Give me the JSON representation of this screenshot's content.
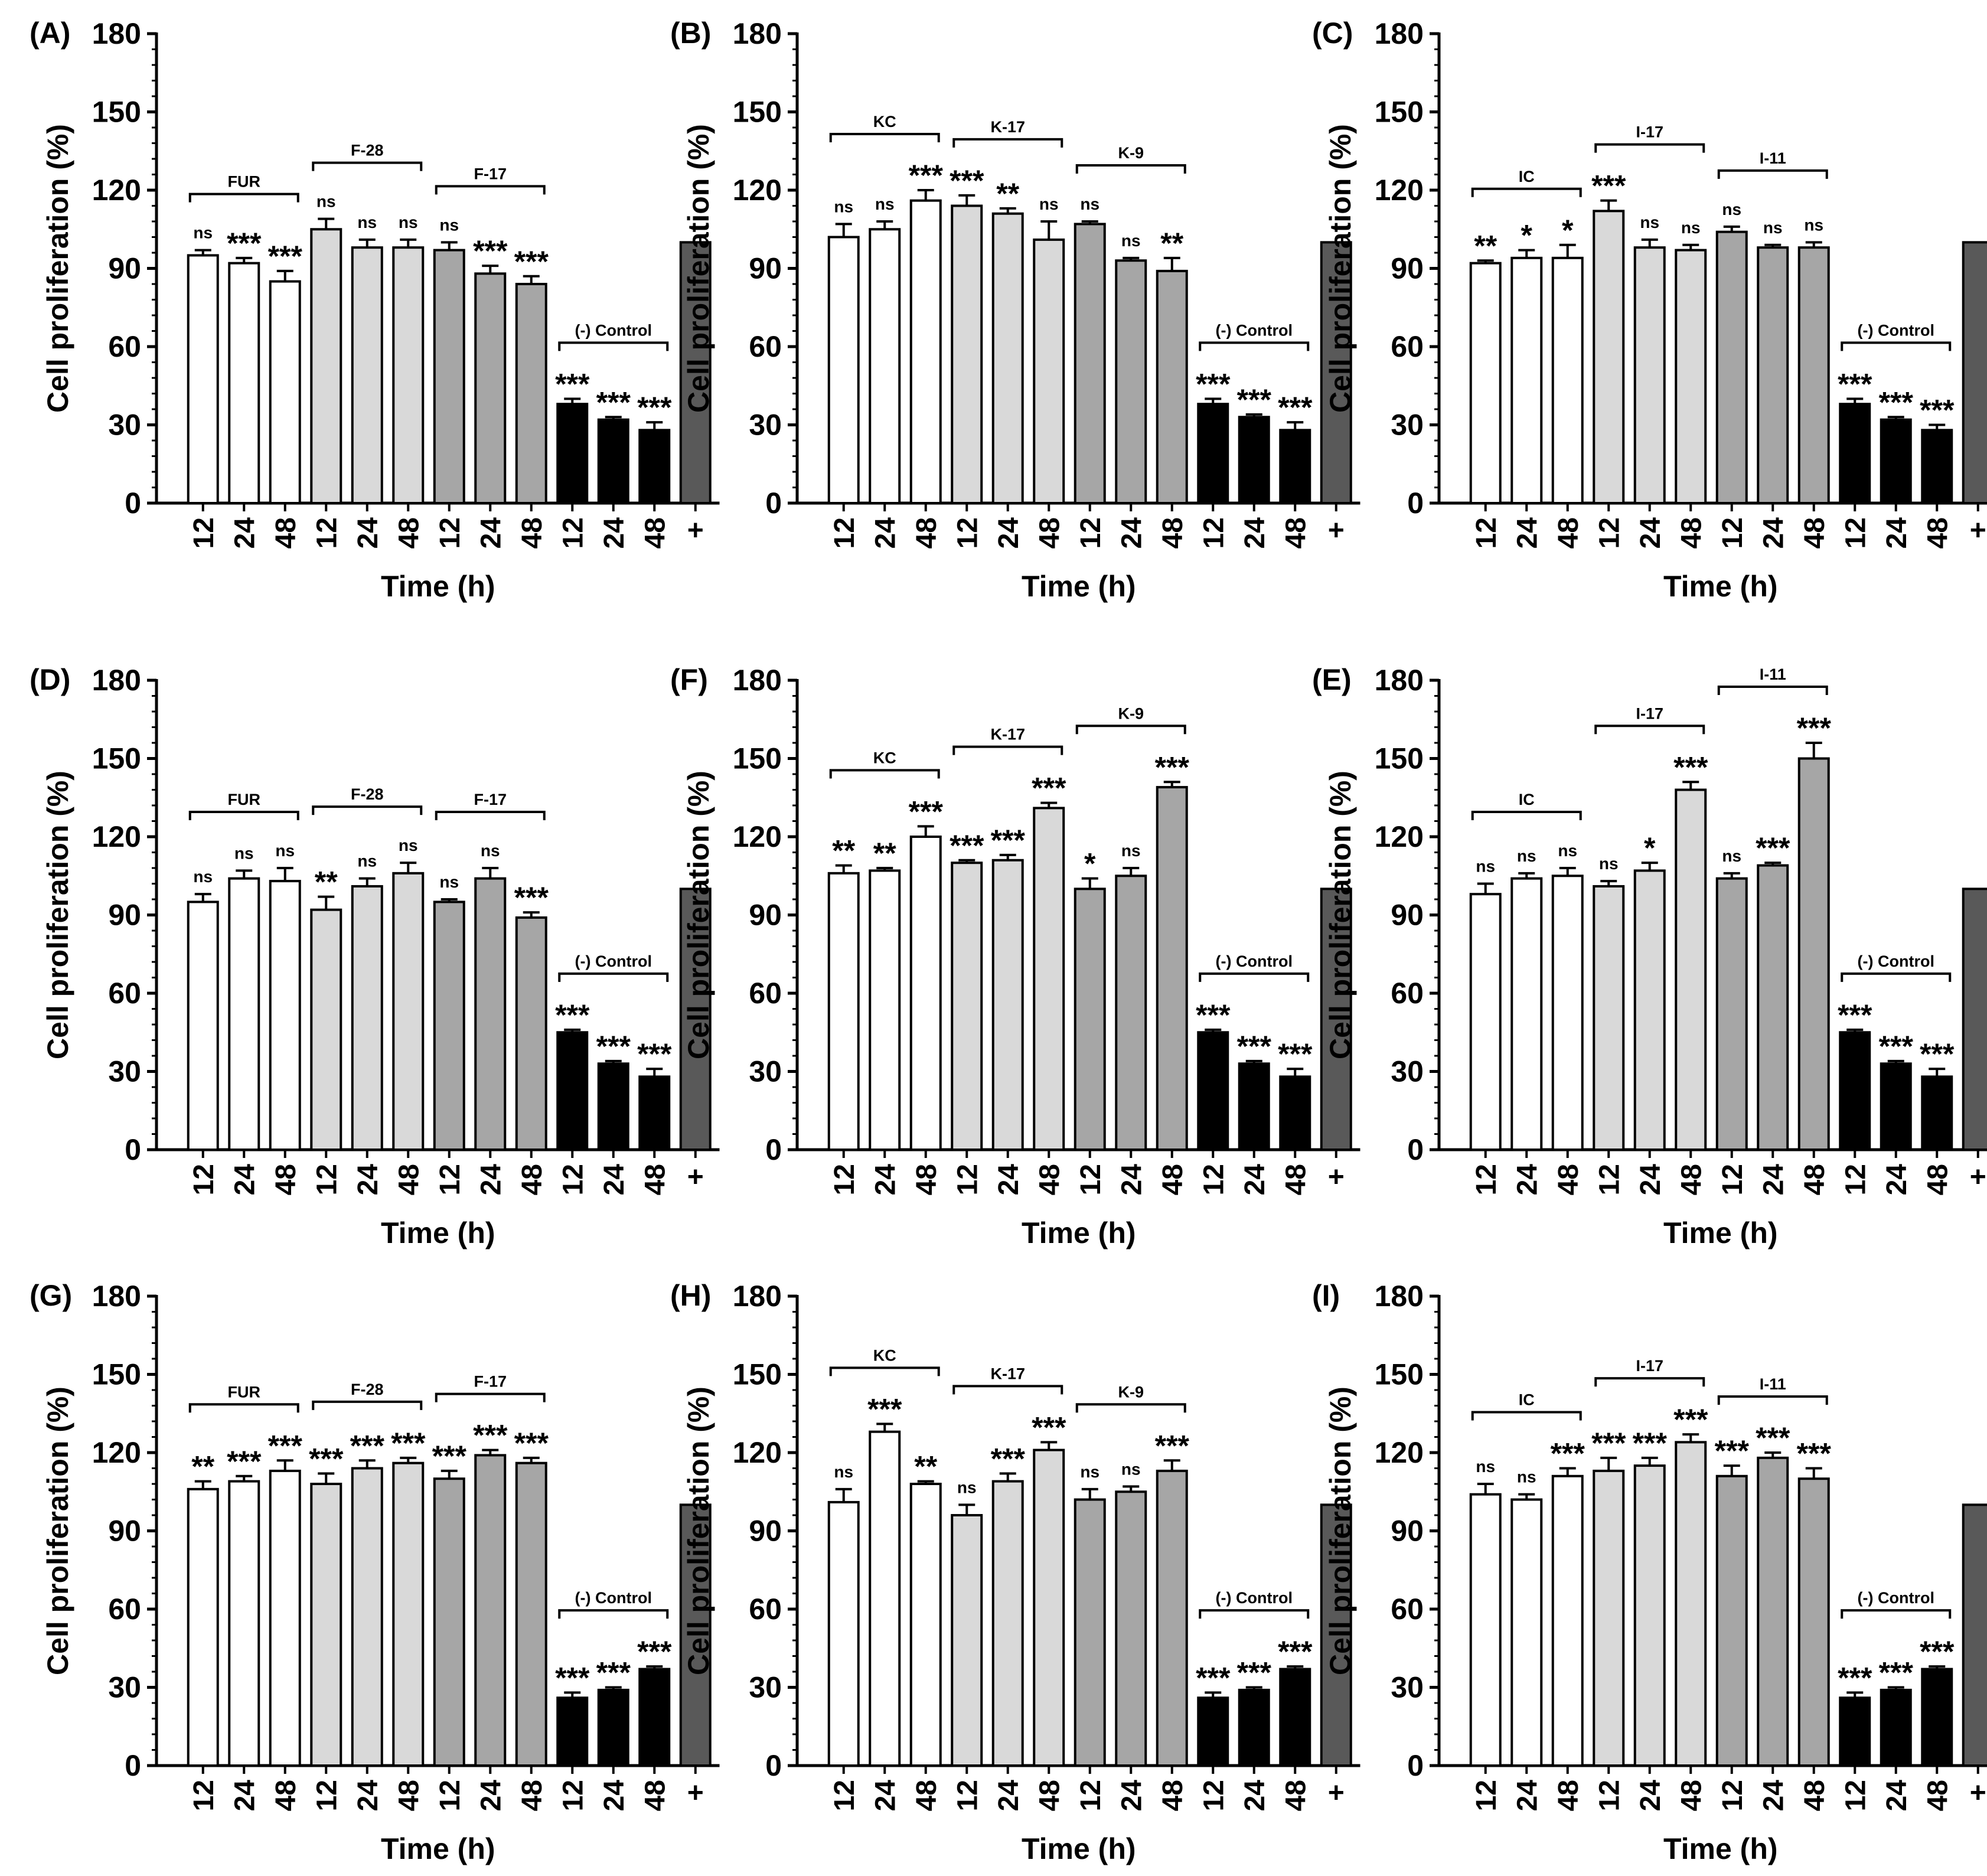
{
  "figure": {
    "y_axis_title": "Cell proliferation (%)",
    "x_axis_title": "Time (h)"
  },
  "colors": {
    "group_1": "#ffffff",
    "group_2": "#d9d9d9",
    "group_3": "#a6a6a6",
    "negative_control": "#000000",
    "positive_control": "#595959"
  },
  "chart_data": [
    {
      "type": "bar",
      "label": "(A)",
      "ylabel": "Cell proliferation (%)",
      "xlabel": "Time (h)",
      "ylim": [
        0,
        180
      ],
      "yticks": [
        0,
        30,
        60,
        90,
        120,
        150,
        180
      ],
      "categories": [
        "12",
        "24",
        "48",
        "12",
        "24",
        "48",
        "12",
        "24",
        "48",
        "12",
        "24",
        "48",
        "+"
      ],
      "groups": [
        {
          "name": "FUR",
          "start": 0,
          "end": 2
        },
        {
          "name": "F-28",
          "start": 3,
          "end": 5
        },
        {
          "name": "F-17",
          "start": 6,
          "end": 8
        },
        {
          "name": "(-) Control",
          "start": 9,
          "end": 11
        }
      ],
      "values": [
        95,
        92,
        85,
        105,
        98,
        98,
        97,
        88,
        84,
        38,
        32,
        28,
        100
      ],
      "errors": [
        2,
        2,
        4,
        4,
        3,
        3,
        3,
        3,
        3,
        2,
        1,
        3,
        0
      ],
      "significance": [
        "ns",
        "***",
        "***",
        "ns",
        "ns",
        "ns",
        "ns",
        "***",
        "***",
        "***",
        "***",
        "***",
        ""
      ]
    },
    {
      "type": "bar",
      "label": "(B)",
      "ylabel": "Cell proliferation (%)",
      "xlabel": "Time (h)",
      "ylim": [
        0,
        180
      ],
      "yticks": [
        0,
        30,
        60,
        90,
        120,
        150,
        180
      ],
      "categories": [
        "12",
        "24",
        "48",
        "12",
        "24",
        "48",
        "12",
        "24",
        "48",
        "12",
        "24",
        "48",
        "+"
      ],
      "groups": [
        {
          "name": "KC",
          "start": 0,
          "end": 2
        },
        {
          "name": "K-17",
          "start": 3,
          "end": 5
        },
        {
          "name": "K-9",
          "start": 6,
          "end": 8
        },
        {
          "name": "(-) Control",
          "start": 9,
          "end": 11
        }
      ],
      "values": [
        102,
        105,
        116,
        114,
        111,
        101,
        107,
        93,
        89,
        38,
        33,
        28,
        100
      ],
      "errors": [
        5,
        3,
        4,
        4,
        2,
        7,
        1,
        1,
        5,
        2,
        1,
        3,
        0
      ],
      "significance": [
        "ns",
        "ns",
        "***",
        "***",
        "**",
        "ns",
        "ns",
        "ns",
        "**",
        "***",
        "***",
        "***",
        ""
      ]
    },
    {
      "type": "bar",
      "label": "(C)",
      "ylabel": "Cell proliferation (%)",
      "xlabel": "Time (h)",
      "ylim": [
        0,
        180
      ],
      "yticks": [
        0,
        30,
        60,
        90,
        120,
        150,
        180
      ],
      "categories": [
        "12",
        "24",
        "48",
        "12",
        "24",
        "48",
        "12",
        "24",
        "48",
        "12",
        "24",
        "48",
        "+"
      ],
      "groups": [
        {
          "name": "IC",
          "start": 0,
          "end": 2
        },
        {
          "name": "I-17",
          "start": 3,
          "end": 5
        },
        {
          "name": "I-11",
          "start": 6,
          "end": 8
        },
        {
          "name": "(-) Control",
          "start": 9,
          "end": 11
        }
      ],
      "values": [
        92,
        94,
        94,
        112,
        98,
        97,
        104,
        98,
        98,
        38,
        32,
        28,
        100
      ],
      "errors": [
        1,
        3,
        5,
        4,
        3,
        2,
        2,
        1,
        2,
        2,
        1,
        2,
        0
      ],
      "significance": [
        "**",
        "*",
        "*",
        "***",
        "ns",
        "ns",
        "ns",
        "ns",
        "ns",
        "***",
        "***",
        "***",
        ""
      ]
    },
    {
      "type": "bar",
      "label": "(D)",
      "ylabel": "Cell proliferation (%)",
      "xlabel": "Time (h)",
      "ylim": [
        0,
        180
      ],
      "yticks": [
        0,
        30,
        60,
        90,
        120,
        150,
        180
      ],
      "categories": [
        "12",
        "24",
        "48",
        "12",
        "24",
        "48",
        "12",
        "24",
        "48",
        "12",
        "24",
        "48",
        "+"
      ],
      "groups": [
        {
          "name": "FUR",
          "start": 0,
          "end": 2
        },
        {
          "name": "F-28",
          "start": 3,
          "end": 5
        },
        {
          "name": "F-17",
          "start": 6,
          "end": 8
        },
        {
          "name": "(-) Control",
          "start": 9,
          "end": 11
        }
      ],
      "values": [
        95,
        104,
        103,
        92,
        101,
        106,
        95,
        104,
        89,
        45,
        33,
        28,
        100
      ],
      "errors": [
        3,
        3,
        5,
        5,
        3,
        4,
        1,
        4,
        2,
        1,
        1,
        3,
        0
      ],
      "significance": [
        "ns",
        "ns",
        "ns",
        "**",
        "ns",
        "ns",
        "ns",
        "ns",
        "***",
        "***",
        "***",
        "***",
        ""
      ]
    },
    {
      "type": "bar",
      "label": "(F)",
      "ylabel": "Cell proliferation (%)",
      "xlabel": "Time (h)",
      "ylim": [
        0,
        180
      ],
      "yticks": [
        0,
        30,
        60,
        90,
        120,
        150,
        180
      ],
      "categories": [
        "12",
        "24",
        "48",
        "12",
        "24",
        "48",
        "12",
        "24",
        "48",
        "12",
        "24",
        "48",
        "+"
      ],
      "groups": [
        {
          "name": "KC",
          "start": 0,
          "end": 2
        },
        {
          "name": "K-17",
          "start": 3,
          "end": 5
        },
        {
          "name": "K-9",
          "start": 6,
          "end": 8
        },
        {
          "name": "(-) Control",
          "start": 9,
          "end": 11
        }
      ],
      "values": [
        106,
        107,
        120,
        110,
        111,
        131,
        100,
        105,
        139,
        45,
        33,
        28,
        100
      ],
      "errors": [
        3,
        1,
        4,
        1,
        2,
        2,
        4,
        3,
        2,
        1,
        1,
        3,
        0
      ],
      "significance": [
        "**",
        "**",
        "***",
        "***",
        "***",
        "***",
        "*",
        "ns",
        "***",
        "***",
        "***",
        "***",
        ""
      ]
    },
    {
      "type": "bar",
      "label": "(E)",
      "ylabel": "Cell proliferation (%)",
      "xlabel": "Time (h)",
      "ylim": [
        0,
        180
      ],
      "yticks": [
        0,
        30,
        60,
        90,
        120,
        150,
        180
      ],
      "categories": [
        "12",
        "24",
        "48",
        "12",
        "24",
        "48",
        "12",
        "24",
        "48",
        "12",
        "24",
        "48",
        "+"
      ],
      "groups": [
        {
          "name": "IC",
          "start": 0,
          "end": 2
        },
        {
          "name": "I-17",
          "start": 3,
          "end": 5
        },
        {
          "name": "I-11",
          "start": 6,
          "end": 8
        },
        {
          "name": "(-) Control",
          "start": 9,
          "end": 11
        }
      ],
      "values": [
        98,
        104,
        105,
        101,
        107,
        138,
        104,
        109,
        150,
        45,
        33,
        28,
        100
      ],
      "errors": [
        4,
        2,
        3,
        2,
        3,
        3,
        2,
        1,
        6,
        1,
        1,
        3,
        0
      ],
      "significance": [
        "ns",
        "ns",
        "ns",
        "ns",
        "*",
        "***",
        "ns",
        "***",
        "***",
        "***",
        "***",
        "***",
        ""
      ]
    },
    {
      "type": "bar",
      "label": "(G)",
      "ylabel": "Cell proliferation (%)",
      "xlabel": "Time (h)",
      "ylim": [
        0,
        180
      ],
      "yticks": [
        0,
        30,
        60,
        90,
        120,
        150,
        180
      ],
      "categories": [
        "12",
        "24",
        "48",
        "12",
        "24",
        "48",
        "12",
        "24",
        "48",
        "12",
        "24",
        "48",
        "+"
      ],
      "groups": [
        {
          "name": "FUR",
          "start": 0,
          "end": 2
        },
        {
          "name": "F-28",
          "start": 3,
          "end": 5
        },
        {
          "name": "F-17",
          "start": 6,
          "end": 8
        },
        {
          "name": "(-) Control",
          "start": 9,
          "end": 11
        }
      ],
      "values": [
        106,
        109,
        113,
        108,
        114,
        116,
        110,
        119,
        116,
        26,
        29,
        37,
        100
      ],
      "errors": [
        3,
        2,
        4,
        4,
        3,
        2,
        3,
        2,
        2,
        2,
        1,
        1,
        0
      ],
      "significance": [
        "**",
        "***",
        "***",
        "***",
        "***",
        "***",
        "***",
        "***",
        "***",
        "***",
        "***",
        "***",
        ""
      ]
    },
    {
      "type": "bar",
      "label": "(H)",
      "ylabel": "Cell proliferation (%)",
      "xlabel": "Time (h)",
      "ylim": [
        0,
        180
      ],
      "yticks": [
        0,
        30,
        60,
        90,
        120,
        150,
        180
      ],
      "categories": [
        "12",
        "24",
        "48",
        "12",
        "24",
        "48",
        "12",
        "24",
        "48",
        "12",
        "24",
        "48",
        "+"
      ],
      "groups": [
        {
          "name": "KC",
          "start": 0,
          "end": 2
        },
        {
          "name": "K-17",
          "start": 3,
          "end": 5
        },
        {
          "name": "K-9",
          "start": 6,
          "end": 8
        },
        {
          "name": "(-) Control",
          "start": 9,
          "end": 11
        }
      ],
      "values": [
        101,
        128,
        108,
        96,
        109,
        121,
        102,
        105,
        113,
        26,
        29,
        37,
        100
      ],
      "errors": [
        5,
        3,
        1,
        4,
        3,
        3,
        4,
        2,
        4,
        2,
        1,
        1,
        0
      ],
      "significance": [
        "ns",
        "***",
        "**",
        "ns",
        "***",
        "***",
        "ns",
        "ns",
        "***",
        "***",
        "***",
        "***",
        ""
      ]
    },
    {
      "type": "bar",
      "label": "(I)",
      "ylabel": "Cell proliferation (%)",
      "xlabel": "Time (h)",
      "ylim": [
        0,
        180
      ],
      "yticks": [
        0,
        30,
        60,
        90,
        120,
        150,
        180
      ],
      "categories": [
        "12",
        "24",
        "48",
        "12",
        "24",
        "48",
        "12",
        "24",
        "48",
        "12",
        "24",
        "48",
        "+"
      ],
      "groups": [
        {
          "name": "IC",
          "start": 0,
          "end": 2
        },
        {
          "name": "I-17",
          "start": 3,
          "end": 5
        },
        {
          "name": "I-11",
          "start": 6,
          "end": 8
        },
        {
          "name": "(-) Control",
          "start": 9,
          "end": 11
        }
      ],
      "values": [
        104,
        102,
        111,
        113,
        115,
        124,
        111,
        118,
        110,
        26,
        29,
        37,
        100
      ],
      "errors": [
        4,
        2,
        3,
        5,
        3,
        3,
        4,
        2,
        4,
        2,
        1,
        1,
        0
      ],
      "significance": [
        "ns",
        "ns",
        "***",
        "***",
        "***",
        "***",
        "***",
        "***",
        "***",
        "***",
        "***",
        "***",
        ""
      ]
    }
  ]
}
